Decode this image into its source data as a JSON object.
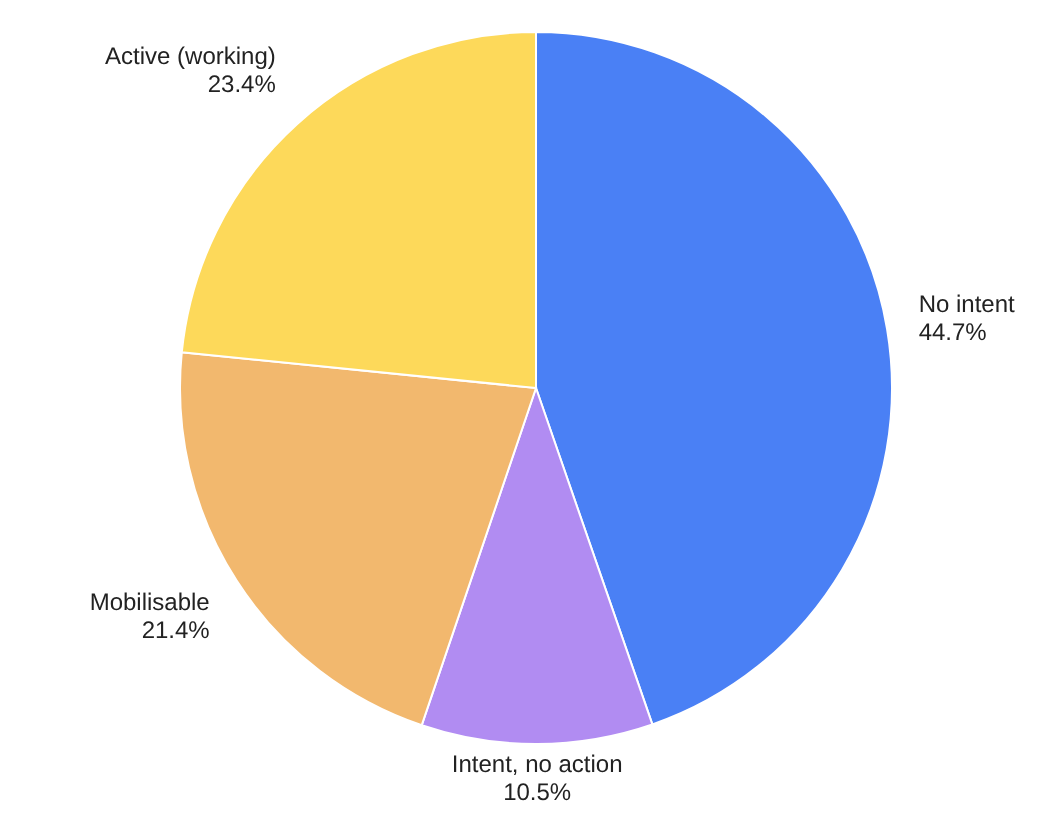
{
  "chart_data": {
    "type": "pie",
    "categories": [
      "No intent",
      "Intent, no action",
      "Mobilisable",
      "Active (working)"
    ],
    "values": [
      44.7,
      10.5,
      21.4,
      23.4
    ],
    "colors": [
      "#4a80f5",
      "#b18cf2",
      "#f2b86e",
      "#fdd95a"
    ],
    "value_labels": [
      "44.7%",
      "10.5%",
      "21.4%",
      "23.4%"
    ]
  }
}
